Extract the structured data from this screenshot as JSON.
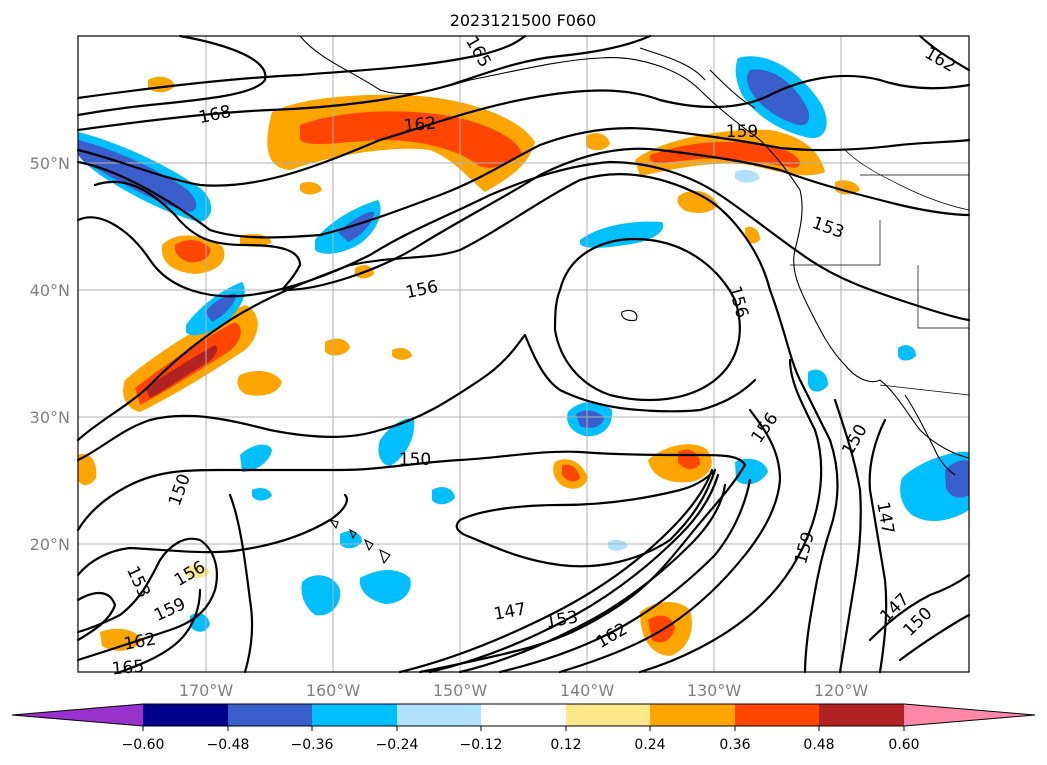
{
  "title": "2023121500 F060",
  "map": {
    "lon_labels": [
      "170°W",
      "160°W",
      "150°W",
      "140°W",
      "130°W",
      "120°W"
    ],
    "lat_labels": [
      "50°N",
      "40°N",
      "30°N",
      "20°N"
    ]
  },
  "contour_labels": [
    {
      "text": "165",
      "rot": 60
    },
    {
      "text": "162",
      "rot": 30
    },
    {
      "text": "168",
      "rot": -12
    },
    {
      "text": "162",
      "rot": -5
    },
    {
      "text": "159",
      "rot": 0
    },
    {
      "text": "153",
      "rot": 20
    },
    {
      "text": "156",
      "rot": -12
    },
    {
      "text": "156",
      "rot": 75
    },
    {
      "text": "150",
      "rot": 0
    },
    {
      "text": "150",
      "rot": -70
    },
    {
      "text": "156",
      "rot": -55
    },
    {
      "text": "150",
      "rot": -60
    },
    {
      "text": "147",
      "rot": 80
    },
    {
      "text": "159",
      "rot": -75
    },
    {
      "text": "147",
      "rot": -10
    },
    {
      "text": "153",
      "rot": -10
    },
    {
      "text": "162",
      "rot": -30
    },
    {
      "text": "147",
      "rot": -45
    },
    {
      "text": "150",
      "rot": -45
    },
    {
      "text": "153",
      "rot": 65
    },
    {
      "text": "156",
      "rot": -30
    },
    {
      "text": "159",
      "rot": -25
    },
    {
      "text": "162",
      "rot": -10
    },
    {
      "text": "165",
      "rot": -5
    }
  ],
  "colorbar": {
    "ticks": [
      "−0.60",
      "−0.48",
      "−0.36",
      "−0.24",
      "−0.12",
      "0.12",
      "0.24",
      "0.36",
      "0.48",
      "0.60"
    ],
    "colors": [
      "#9932cc",
      "#00008b",
      "#3a5fcd",
      "#00bfff",
      "#b0e2ff",
      "#ffffff",
      "#ffe88c",
      "#ffa500",
      "#ff4500",
      "#b22222",
      "#ff88aa"
    ]
  }
}
